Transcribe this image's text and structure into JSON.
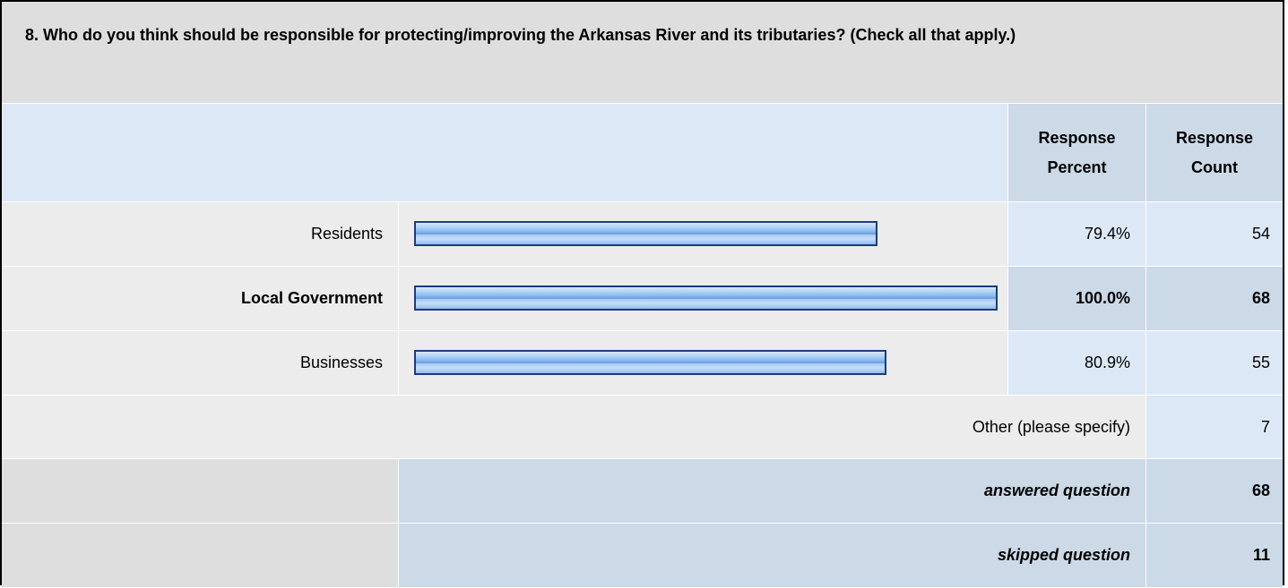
{
  "question": {
    "title": "8. Who do you think should be responsible for protecting/improving the Arkansas River and its tributaries? (Check all that apply.)"
  },
  "columns": {
    "response_percent": "Response Percent",
    "response_count": "Response Count"
  },
  "answers": [
    {
      "label": "Residents",
      "percent_text": "79.4%",
      "percent": 79.4,
      "count": "54",
      "bar_fraction": 0.794
    },
    {
      "label": "Local Government",
      "percent_text": "100.0%",
      "percent": 100.0,
      "count": "68",
      "bar_fraction": 1.0
    },
    {
      "label": "Businesses",
      "percent_text": "80.9%",
      "percent": 80.9,
      "count": "55",
      "bar_fraction": 0.809
    }
  ],
  "other": {
    "label": "Other (please specify)",
    "count": "7"
  },
  "summary": {
    "answered_label": "answered question",
    "answered_count": "68",
    "skipped_label": "skipped question",
    "skipped_count": "11"
  },
  "colors": {
    "bar_border": "#1d3c78",
    "bar_fill": "#7eb2ec",
    "header_bg": "#dedede",
    "light_blue": "#dde8f6",
    "mid_blue": "#ccd9e6",
    "row_gray": "#ececec"
  }
}
